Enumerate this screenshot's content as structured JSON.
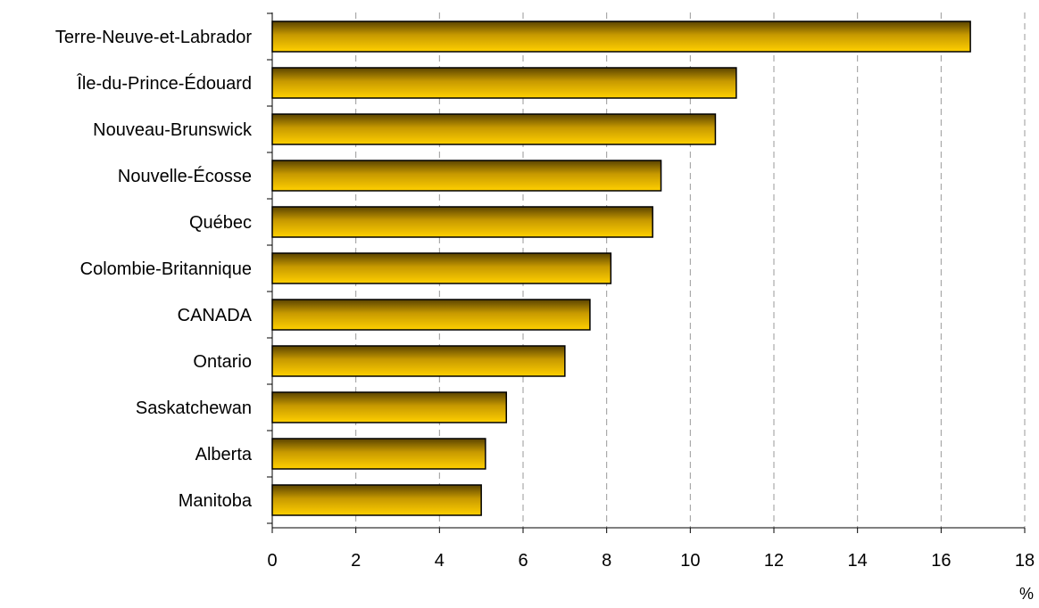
{
  "chart_data": {
    "type": "bar",
    "orientation": "horizontal",
    "title": "",
    "xlabel": "%",
    "ylabel": "",
    "xlim": [
      0,
      18
    ],
    "x_ticks": [
      0,
      2,
      4,
      6,
      8,
      10,
      12,
      14,
      16,
      18
    ],
    "x_tick_labels": [
      "0",
      "2",
      "4",
      "6",
      "8",
      "10",
      "12",
      "14",
      "16",
      "18"
    ],
    "grid": "vertical dashed",
    "legend": "none",
    "categories": [
      "Terre-Neuve-et-Labrador",
      "Île-du-Prince-Édouard",
      "Nouveau-Brunswick",
      "Nouvelle-Écosse",
      "Québec",
      "Colombie-Britannique",
      "CANADA",
      "Ontario",
      "Saskatchewan",
      "Alberta",
      "Manitoba"
    ],
    "values": [
      16.7,
      11.1,
      10.6,
      9.3,
      9.1,
      8.1,
      7.6,
      7.0,
      5.6,
      5.1,
      5.0
    ],
    "colors": {
      "bar_top": "#5a4300",
      "bar_mid": "#c89a00",
      "bar_bottom": "#ffd000",
      "bar_outline": "#000000",
      "grid": "#999999"
    }
  }
}
